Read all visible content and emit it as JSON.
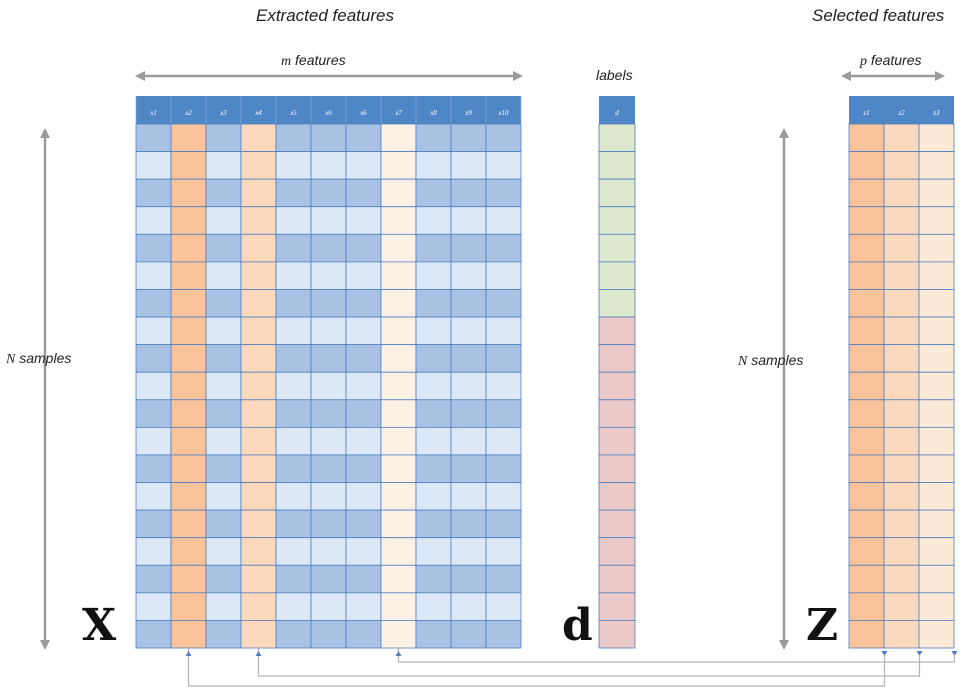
{
  "titles": {
    "extracted": "Extracted features",
    "selected": "Selected features"
  },
  "labels": {
    "m_var": "m",
    "m_features": " features",
    "p_var": "p",
    "p_features": " features",
    "labels_caption": "labels",
    "n_var_left": "N",
    "n_samples_left": " samples",
    "n_var_right": "N",
    "n_samples_right": " samples"
  },
  "matrices": {
    "X": {
      "letter": "X",
      "headers": [
        "x1",
        "x2",
        "x3",
        "x4",
        "x5",
        "x6",
        "x6",
        "x7",
        "x8",
        "x9",
        "x10"
      ],
      "selected_columns": [
        1,
        3,
        7
      ],
      "rows": 19
    },
    "d": {
      "letter": "d",
      "header": "d",
      "rows": 19,
      "class_a_rows": 7,
      "class_b_rows": 12
    },
    "Z": {
      "letter": "Z",
      "headers": [
        "z1",
        "z2",
        "z3"
      ],
      "rows": 19
    }
  },
  "colors": {
    "header_blue": "#4f86c6",
    "blue_dark": "#a9c2e4",
    "blue_light": "#dde8f6",
    "orange_strong": "#f8c39a",
    "orange_mid": "#fcd9bc",
    "orange_pale": "#fde9d7",
    "orange_faint": "#fdf1e6",
    "label_green": "#dde8cf",
    "label_red": "#ecc9c9",
    "grid_line": "#4f7fbf",
    "arrow_gray": "#9a9a9a",
    "connector_gray": "#b3b3b3"
  }
}
